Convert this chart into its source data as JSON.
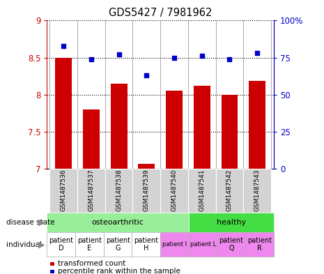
{
  "title": "GDS5427 / 7981962",
  "samples": [
    "GSM1487536",
    "GSM1487537",
    "GSM1487538",
    "GSM1487539",
    "GSM1487540",
    "GSM1487541",
    "GSM1487542",
    "GSM1487543"
  ],
  "transformed_count": [
    8.5,
    7.8,
    8.15,
    7.06,
    8.05,
    8.12,
    8.0,
    8.18
  ],
  "percentile_rank": [
    83,
    74,
    77,
    63,
    75,
    76,
    74,
    78
  ],
  "ylim_left": [
    7.0,
    9.0
  ],
  "ylim_right": [
    0,
    100
  ],
  "yticks_left": [
    7.0,
    7.5,
    8.0,
    8.5,
    9.0
  ],
  "yticks_right": [
    0,
    25,
    50,
    75,
    100
  ],
  "bar_color": "#cc0000",
  "dot_color": "#0000cc",
  "disease_state_groups": [
    {
      "label": "osteoarthritic",
      "start": 0,
      "end": 5,
      "color": "#99ee99"
    },
    {
      "label": "healthy",
      "start": 5,
      "end": 8,
      "color": "#44dd44"
    }
  ],
  "individual_labels": [
    "patient\nD",
    "patient\nE",
    "patient\nG",
    "patient\nH",
    "patient I",
    "patient L",
    "patient\nQ",
    "patient\nR"
  ],
  "individual_colors": [
    "#ffffff",
    "#ffffff",
    "#ffffff",
    "#ffffff",
    "#ee88ee",
    "#ee88ee",
    "#ee88ee",
    "#ee88ee"
  ],
  "individual_fontsize_large": [
    true,
    true,
    true,
    true,
    false,
    false,
    true,
    true
  ],
  "label_row1": "disease state",
  "label_row2": "individual",
  "legend_items": [
    {
      "color": "#cc0000",
      "label": "transformed count"
    },
    {
      "color": "#0000cc",
      "label": "percentile rank within the sample"
    }
  ],
  "tick_color_left": "#cc0000",
  "tick_color_right": "#0000cc",
  "sample_box_color": "#d3d3d3"
}
